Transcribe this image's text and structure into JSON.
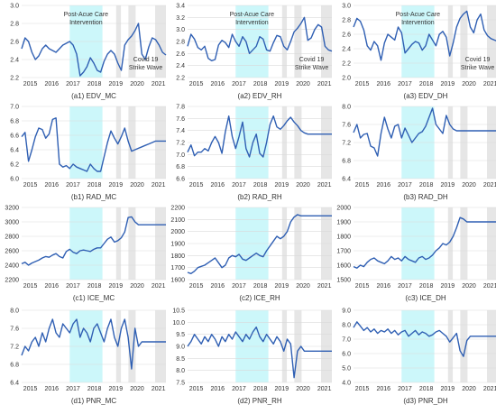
{
  "chart_data": [
    {
      "type": "line",
      "title": "(a1) EDV_MC",
      "ylim": [
        2.2,
        3.0
      ],
      "yticks": [
        "2.2",
        "2.4",
        "2.6",
        "2.8",
        "3.0"
      ],
      "xticks": [
        "2015",
        "2016",
        "2017",
        "2018",
        "2019",
        "2020",
        "2021"
      ],
      "annotations": [
        "Post-Acue Care",
        "Intervention",
        "Covid 19",
        "Strike Wave"
      ],
      "values": [
        2.52,
        2.64,
        2.6,
        2.48,
        2.4,
        2.44,
        2.52,
        2.56,
        2.52,
        2.5,
        2.48,
        2.52,
        2.56,
        2.58,
        2.6,
        2.56,
        2.46,
        2.22,
        2.26,
        2.32,
        2.42,
        2.36,
        2.28,
        2.26,
        2.38,
        2.46,
        2.5,
        2.46,
        2.36,
        2.28,
        2.56,
        2.62,
        2.66,
        2.72,
        2.8,
        2.46,
        2.4,
        2.54,
        2.64,
        2.62,
        2.56,
        2.48,
        2.45
      ]
    },
    {
      "type": "line",
      "title": "(a2) EDV_RH",
      "ylim": [
        2.2,
        3.4
      ],
      "yticks": [
        "2.2",
        "2.4",
        "2.6",
        "2.8",
        "3.0",
        "3.2",
        "3.4"
      ],
      "xticks": [
        "2015",
        "2016",
        "2017",
        "2018",
        "2019",
        "2020",
        "2021"
      ],
      "annotations": [
        "Post-Acue Care",
        "Intervention",
        "Covid 19",
        "Strike Wave"
      ],
      "values": [
        2.72,
        2.92,
        2.84,
        2.7,
        2.66,
        2.72,
        2.52,
        2.48,
        2.5,
        2.74,
        2.82,
        2.78,
        2.7,
        2.92,
        2.8,
        2.72,
        2.88,
        2.8,
        2.6,
        2.66,
        2.72,
        2.88,
        2.84,
        2.66,
        2.64,
        2.78,
        2.9,
        2.88,
        2.72,
        2.66,
        2.8,
        2.96,
        3.02,
        3.1,
        3.2,
        2.82,
        2.86,
        3.0,
        3.08,
        3.04,
        2.72,
        2.66,
        2.64
      ]
    },
    {
      "type": "line",
      "title": "(a3) EDV_DH",
      "ylim": [
        2.0,
        3.0
      ],
      "yticks": [
        "2.0",
        "2.2",
        "2.4",
        "2.6",
        "2.8",
        "3.0"
      ],
      "xticks": [
        "2015",
        "2016",
        "2017",
        "2018",
        "2019",
        "2020",
        "2021"
      ],
      "annotations": [
        "Post-Acue Care",
        "Intervention",
        "Covid 19",
        "Strike Wave"
      ],
      "values": [
        2.7,
        2.82,
        2.78,
        2.66,
        2.44,
        2.38,
        2.5,
        2.44,
        2.24,
        2.48,
        2.6,
        2.56,
        2.52,
        2.7,
        2.62,
        2.34,
        2.4,
        2.46,
        2.5,
        2.48,
        2.38,
        2.44,
        2.6,
        2.52,
        2.44,
        2.6,
        2.64,
        2.56,
        2.3,
        2.48,
        2.7,
        2.82,
        2.88,
        2.92,
        2.7,
        2.62,
        2.8,
        2.88,
        2.66,
        2.58,
        2.54,
        2.52,
        2.5
      ]
    },
    {
      "type": "line",
      "title": "(b1) RAD_MC",
      "ylim": [
        6.0,
        7.0
      ],
      "yticks": [
        "6.0",
        "6.2",
        "6.4",
        "6.6",
        "6.8",
        "7.0"
      ],
      "xticks": [
        "2015",
        "2016",
        "2017",
        "2018",
        "2019",
        "2020",
        "2021"
      ],
      "values": [
        6.58,
        6.64,
        6.24,
        6.4,
        6.58,
        6.7,
        6.68,
        6.56,
        6.62,
        6.82,
        6.84,
        6.2,
        6.16,
        6.18,
        6.14,
        6.2,
        6.16,
        6.14,
        6.12,
        6.1,
        6.2,
        6.14,
        6.1,
        6.1,
        6.3,
        6.5,
        6.66,
        6.56,
        6.48,
        6.58,
        6.7,
        6.52,
        6.38,
        6.4,
        6.42,
        6.44,
        6.46,
        6.48,
        6.5,
        6.52,
        6.52,
        6.52,
        6.52
      ]
    },
    {
      "type": "line",
      "title": "(b2) RAD_RH",
      "ylim": [
        6.6,
        7.8
      ],
      "yticks": [
        "6.6",
        "6.8",
        "7.0",
        "7.2",
        "7.4",
        "7.6",
        "7.8"
      ],
      "xticks": [
        "2015",
        "2016",
        "2017",
        "2018",
        "2019",
        "2020",
        "2021"
      ],
      "values": [
        7.04,
        7.16,
        6.98,
        7.04,
        7.04,
        7.1,
        7.06,
        7.2,
        7.3,
        7.2,
        7.02,
        7.38,
        7.64,
        7.3,
        7.1,
        7.3,
        7.54,
        7.1,
        6.96,
        7.2,
        7.34,
        7.02,
        6.96,
        7.2,
        7.5,
        7.64,
        7.46,
        7.42,
        7.48,
        7.56,
        7.62,
        7.54,
        7.48,
        7.4,
        7.36,
        7.34,
        7.34,
        7.34,
        7.34,
        7.34,
        7.34,
        7.34,
        7.34
      ]
    },
    {
      "type": "line",
      "title": "(b3) RAD_DH",
      "ylim": [
        6.4,
        8.0
      ],
      "yticks": [
        "6.4",
        "6.8",
        "7.2",
        "7.6",
        "8.0"
      ],
      "xticks": [
        "2015",
        "2016",
        "2017",
        "2018",
        "2019",
        "2020",
        "2021"
      ],
      "values": [
        7.42,
        7.6,
        7.3,
        7.38,
        7.4,
        7.12,
        7.08,
        6.9,
        7.4,
        7.76,
        7.5,
        7.3,
        7.56,
        7.6,
        7.3,
        7.52,
        7.36,
        7.2,
        7.3,
        7.4,
        7.44,
        7.56,
        7.76,
        7.96,
        7.6,
        7.5,
        7.4,
        7.8,
        7.6,
        7.5,
        7.46,
        7.46,
        7.46,
        7.46,
        7.46,
        7.46,
        7.46,
        7.46,
        7.46,
        7.46,
        7.46,
        7.46,
        7.46
      ]
    },
    {
      "type": "line",
      "title": "(c1) ICE_MC",
      "ylim": [
        2200,
        3200
      ],
      "yticks": [
        "2200",
        "2400",
        "2600",
        "2800",
        "3000",
        "3200"
      ],
      "xticks": [
        "2015",
        "2016",
        "2017",
        "2018",
        "2019",
        "2020",
        "2021"
      ],
      "values": [
        2420,
        2440,
        2400,
        2430,
        2450,
        2470,
        2500,
        2520,
        2510,
        2540,
        2560,
        2520,
        2500,
        2590,
        2620,
        2580,
        2560,
        2600,
        2610,
        2600,
        2590,
        2620,
        2640,
        2640,
        2700,
        2760,
        2790,
        2720,
        2740,
        2780,
        2860,
        3060,
        3070,
        3000,
        2960,
        2960,
        2960,
        2960,
        2960,
        2960,
        2960,
        2960,
        2960
      ]
    },
    {
      "type": "line",
      "title": "(c2) ICE_RH",
      "ylim": [
        1600,
        2200
      ],
      "yticks": [
        "1600",
        "1700",
        "1800",
        "1900",
        "2000",
        "2100",
        "2200"
      ],
      "xticks": [
        "2015",
        "2016",
        "2017",
        "2018",
        "2019",
        "2020",
        "2021"
      ],
      "values": [
        1660,
        1650,
        1670,
        1700,
        1710,
        1720,
        1740,
        1760,
        1780,
        1740,
        1700,
        1720,
        1780,
        1800,
        1790,
        1810,
        1770,
        1760,
        1780,
        1800,
        1820,
        1800,
        1790,
        1840,
        1880,
        1920,
        1960,
        1940,
        1960,
        2000,
        2080,
        2120,
        2140,
        2130,
        2130,
        2130,
        2130,
        2130,
        2130,
        2130,
        2130,
        2130,
        2130
      ]
    },
    {
      "type": "line",
      "title": "(c3) ICE_DH",
      "ylim": [
        1500,
        2000
      ],
      "yticks": [
        "1500",
        "1600",
        "1700",
        "1800",
        "1900",
        "2000"
      ],
      "xticks": [
        "2015",
        "2016",
        "2017",
        "2018",
        "2019",
        "2020",
        "2021"
      ],
      "values": [
        1590,
        1580,
        1600,
        1590,
        1620,
        1640,
        1650,
        1630,
        1620,
        1610,
        1630,
        1660,
        1640,
        1650,
        1630,
        1660,
        1640,
        1630,
        1620,
        1650,
        1660,
        1640,
        1650,
        1670,
        1700,
        1720,
        1750,
        1740,
        1760,
        1800,
        1860,
        1930,
        1920,
        1900,
        1900,
        1900,
        1900,
        1900,
        1900,
        1900,
        1900,
        1900,
        1900
      ]
    },
    {
      "type": "line",
      "title": "(d1) PNR_MC",
      "ylim": [
        6.4,
        8.0
      ],
      "yticks": [
        "6.4",
        "6.8",
        "7.2",
        "7.6",
        "8.0"
      ],
      "xticks": [
        "2015",
        "2016",
        "2017",
        "2018",
        "2019",
        "2020",
        "2021"
      ],
      "values": [
        7.0,
        7.2,
        7.1,
        7.3,
        7.4,
        7.2,
        7.5,
        7.3,
        7.6,
        7.8,
        7.5,
        7.4,
        7.7,
        7.6,
        7.5,
        7.7,
        7.8,
        7.4,
        7.6,
        7.5,
        7.3,
        7.6,
        7.7,
        7.5,
        7.3,
        7.6,
        7.8,
        7.4,
        7.2,
        7.6,
        7.8,
        7.4,
        6.7,
        7.6,
        7.2,
        7.3,
        7.3,
        7.3,
        7.3,
        7.3,
        7.3,
        7.3,
        7.3
      ]
    },
    {
      "type": "line",
      "title": "(d2) PNR_RH",
      "ylim": [
        7.5,
        10.5
      ],
      "yticks": [
        "7.5",
        "8.0",
        "8.5",
        "9.0",
        "9.5",
        "10.0",
        "10.5"
      ],
      "xticks": [
        "2015",
        "2016",
        "2017",
        "2018",
        "2019",
        "2020",
        "2021"
      ],
      "values": [
        9.0,
        9.2,
        9.5,
        9.3,
        9.1,
        9.4,
        9.2,
        9.5,
        9.3,
        9.0,
        9.4,
        9.2,
        9.5,
        9.3,
        9.6,
        9.4,
        9.2,
        9.5,
        9.3,
        9.6,
        9.8,
        9.4,
        9.2,
        9.5,
        9.3,
        9.1,
        9.4,
        9.2,
        8.8,
        9.3,
        9.1,
        7.7,
        8.8,
        9.0,
        8.8,
        8.8,
        8.8,
        8.8,
        8.8,
        8.8,
        8.8,
        8.8,
        8.8
      ]
    },
    {
      "type": "line",
      "title": "(d3) PNR_DH",
      "ylim": [
        4.0,
        9.0
      ],
      "yticks": [
        "4.0",
        "5.0",
        "6.0",
        "7.0",
        "8.0",
        "9.0"
      ],
      "xticks": [
        "2015",
        "2016",
        "2017",
        "2018",
        "2019",
        "2020",
        "2021"
      ],
      "values": [
        7.8,
        8.2,
        7.9,
        7.6,
        7.8,
        7.5,
        7.7,
        7.4,
        7.6,
        7.5,
        7.7,
        7.4,
        7.6,
        7.3,
        7.5,
        7.6,
        7.2,
        7.4,
        7.6,
        7.3,
        7.5,
        7.4,
        7.2,
        7.3,
        7.5,
        7.6,
        7.4,
        7.2,
        6.8,
        7.1,
        7.4,
        6.2,
        5.8,
        6.9,
        7.2,
        7.2,
        7.2,
        7.2,
        7.2,
        7.2,
        7.2,
        7.2,
        7.2
      ]
    }
  ]
}
